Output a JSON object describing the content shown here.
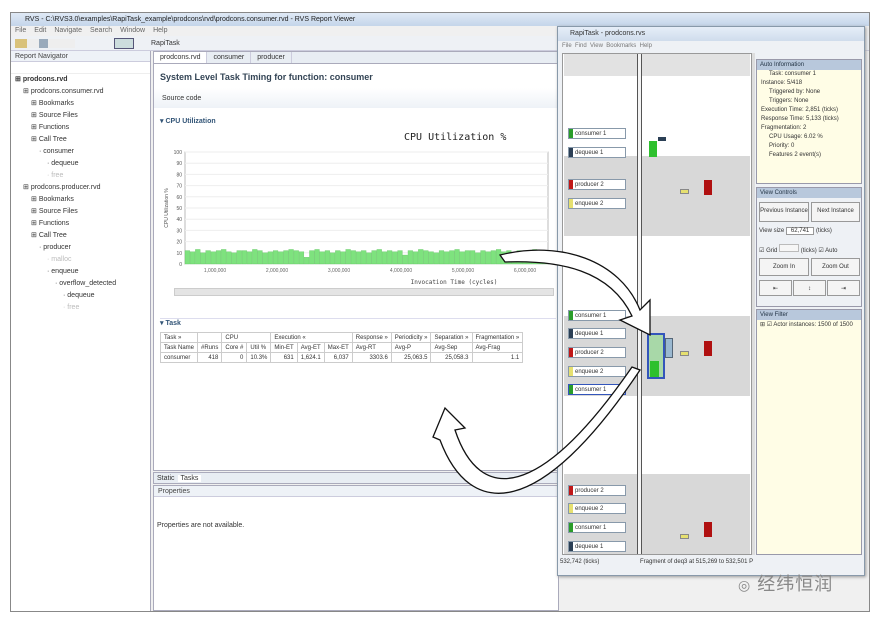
{
  "window": {
    "title": "RVS - C:\\RVS3.0\\examples\\RapiTask_example\\prodcons\\rvd\\prodcons.consumer.rvd - RVS Report Viewer",
    "menu": [
      "File",
      "Edit",
      "Navigate",
      "Search",
      "Window",
      "Help"
    ],
    "perspective": "RapiTask"
  },
  "navigator": {
    "title": "Report Navigator",
    "items": [
      {
        "label": "prodcons.rvd",
        "level": 0,
        "bold": true
      },
      {
        "label": "prodcons.consumer.rvd",
        "level": 1
      },
      {
        "label": "Bookmarks",
        "level": 2
      },
      {
        "label": "Source Files",
        "level": 2
      },
      {
        "label": "Functions",
        "level": 2
      },
      {
        "label": "Call Tree",
        "level": 2
      },
      {
        "label": "consumer",
        "level": 3
      },
      {
        "label": "dequeue",
        "level": 4
      },
      {
        "label": "free",
        "level": 4,
        "faded": true
      },
      {
        "label": "prodcons.producer.rvd",
        "level": 1
      },
      {
        "label": "Bookmarks",
        "level": 2
      },
      {
        "label": "Source Files",
        "level": 2
      },
      {
        "label": "Functions",
        "level": 2
      },
      {
        "label": "Call Tree",
        "level": 2
      },
      {
        "label": "producer",
        "level": 3
      },
      {
        "label": "malloc",
        "level": 4,
        "faded": true
      },
      {
        "label": "enqueue",
        "level": 4
      },
      {
        "label": "overflow_detected",
        "level": 5
      },
      {
        "label": "dequeue",
        "level": 6
      },
      {
        "label": "free",
        "level": 6,
        "faded": true
      }
    ]
  },
  "editor": {
    "tabs": [
      "prodcons.rvd",
      "consumer",
      "producer"
    ],
    "title": "System Level Task Timing for function: consumer",
    "source_code": "Source code",
    "cpu_section": "CPU Utilization",
    "task_section": "Task"
  },
  "cpu_chart": {
    "type": "bar",
    "title": "CPU Utilization %",
    "ylabel": "CPU Utilization %",
    "xlabel": "Invocation Time (cycles)",
    "ylim": [
      0,
      100
    ],
    "yticks": [
      "0",
      "10",
      "20",
      "30",
      "40",
      "50",
      "60",
      "70",
      "80",
      "90",
      "100"
    ],
    "xticks": [
      "1,000,000",
      "2,000,000",
      "3,000,000",
      "4,000,000",
      "5,000,000",
      "6,000,000"
    ],
    "color": "#7ee27e",
    "values": [
      12,
      11,
      13,
      10,
      12,
      11,
      12,
      13,
      11,
      10,
      12,
      12,
      11,
      13,
      12,
      10,
      11,
      12,
      11,
      12,
      13,
      12,
      11,
      6,
      12,
      13,
      11,
      12,
      10,
      12,
      11,
      13,
      12,
      11,
      12,
      10,
      12,
      13,
      11,
      12,
      11,
      12,
      8,
      12,
      11,
      13,
      12,
      11,
      10,
      12,
      11,
      12,
      13,
      11,
      12,
      12,
      10,
      12,
      11,
      12,
      13,
      11,
      12,
      9,
      12,
      11,
      12,
      13,
      11,
      12
    ]
  },
  "task_table": {
    "groups": [
      "Task »",
      "",
      "CPU",
      "Execution «",
      "Response »",
      "Periodicity »",
      "Separation »",
      "Fragmentation »"
    ],
    "columns": [
      "Task Name",
      "#Runs",
      "Core #",
      "Util %",
      "Min-ET",
      "Avg-ET",
      "Max-ET",
      "Avg-RT",
      "Avg-P",
      "Avg-Sep",
      "Avg-Frag"
    ],
    "rows": [
      [
        "consumer",
        "418",
        "0",
        "10.3%",
        "631",
        "1,624.1",
        "6,037",
        "3303.6",
        "25,063.5",
        "25,058.3",
        "1.1"
      ]
    ]
  },
  "bottom": {
    "tabs": [
      "Static",
      "Tasks"
    ],
    "properties_title": "Properties",
    "properties_msg": "Properties are not available."
  },
  "rapitask": {
    "title": "RapiTask - prodcons.rvs",
    "menu": [
      "File",
      "Find",
      "View",
      "Bookmarks",
      "Help"
    ],
    "auto_info": {
      "title": "Auto Information",
      "lines": [
        "Task: consumer 1",
        "Instance: 5/418",
        "Triggered by: None",
        "Triggers: None",
        "Execution Time: 2,851 (ticks)",
        "Response Time: 5,133 (ticks)",
        "Fragmentation: 2",
        "CPU Usage: 6.02 %",
        "Priority: 0",
        "Features 2 event(s)"
      ]
    },
    "controls": {
      "title": "View Controls",
      "prev": "Previous Instance",
      "next": "Next Instance",
      "view_size_label": "View size",
      "view_size": "62,741",
      "ticks": "(ticks)",
      "grid": "Grid",
      "auto": "Auto",
      "zoom_in": "Zoom In",
      "zoom_out": "Zoom Out"
    },
    "filter": {
      "title": "View Filter",
      "item": "Actor instances: 1500 of 1500"
    },
    "status_left": "532,742 (ticks)",
    "status_right": "Fragment of deq3 at 515,269 to 532,501 P",
    "labels": [
      {
        "text": "consumer 1",
        "color": "#2a9d2a"
      },
      {
        "text": "dequeue 1",
        "color": "#2b3f55"
      },
      {
        "text": "producer 2",
        "color": "#c01818"
      },
      {
        "text": "enqueue 2",
        "color": "#e6e070"
      },
      {
        "text": "consumer 1",
        "color": "#2a9d2a"
      },
      {
        "text": "dequeue 1",
        "color": "#2b3f55"
      },
      {
        "text": "producer 2",
        "color": "#c01818"
      },
      {
        "text": "enqueue 2",
        "color": "#e6e070"
      },
      {
        "text": "consumer 1",
        "color": "#2a9d2a"
      },
      {
        "text": "producer 2",
        "color": "#c01818"
      },
      {
        "text": "enqueue 2",
        "color": "#e6e070"
      },
      {
        "text": "consumer 1",
        "color": "#2a9d2a"
      },
      {
        "text": "dequeue 1",
        "color": "#2b3f55"
      }
    ]
  },
  "watermark": "经纬恒润"
}
